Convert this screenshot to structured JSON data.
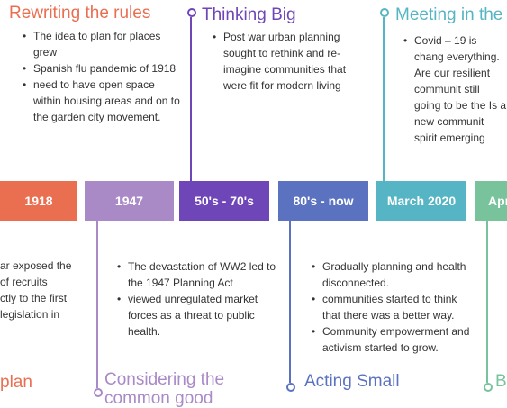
{
  "colors": {
    "orange": "#ea6e50",
    "lavender": "#a98ac7",
    "purple": "#6f46b8",
    "blue": "#5a72c0",
    "teal": "#56b5c4",
    "green": "#78c39c"
  },
  "boxes": [
    "1918",
    "1947",
    "50's - 70's",
    "80's - now",
    "March 2020",
    "Apr"
  ],
  "top": [
    {
      "title": "Rewriting the rules",
      "bullets": [
        "The idea to plan for places grew",
        " Spanish flu pandemic of 1918",
        "need to have open space within housing areas and on to the garden city movement."
      ]
    },
    {
      "title": "Thinking Big",
      "bullets": [
        "Post war urban planning sought to rethink and re-imagine communities that were fit for modern living"
      ]
    },
    {
      "title": "Meeting in the m",
      "bullets": [
        "Covid – 19 is chang everything. Are our resilient communit still going to be the Is a new communit spirit emerging"
      ]
    }
  ],
  "bottom": [
    {
      "title": "plan",
      "lines": [
        "ar exposed the",
        "of recruits",
        "ctly to the first",
        "legislation in"
      ]
    },
    {
      "title": "Considering the common good",
      "bullets": [
        "The devastation of WW2 led to the 1947 Planning Act",
        " viewed unregulated market forces as a threat to public health."
      ]
    },
    {
      "title": "Acting Small",
      "bullets": [
        "Gradually planning and health disconnected.",
        "communities started to think that there was a better way.",
        "Community empowerment and activism started to grow."
      ]
    },
    {
      "title": "B",
      "lines": [
        "",
        ""
      ]
    }
  ]
}
